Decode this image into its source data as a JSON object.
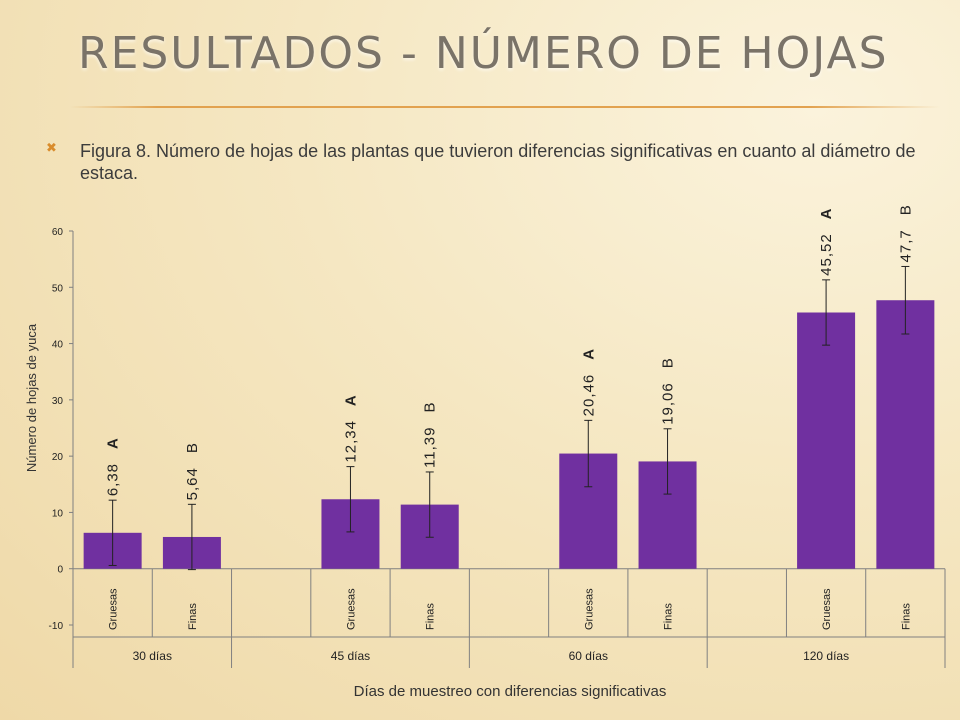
{
  "slide": {
    "title": "RESULTADOS  -  NÚMERO DE HOJAS",
    "bullet_icon": "x-bullet-icon",
    "caption": "Figura 8. Número de hojas de las plantas que tuvieron diferencias significativas en cuanto al diámetro de estaca."
  },
  "colors": {
    "bar": "#7030a0",
    "title": "#7a7368",
    "accent": "#e2a24f"
  },
  "chart_data": {
    "type": "bar",
    "title": "",
    "xlabel": "Días de muestreo con diferencias significativas",
    "ylabel": "Número de hojas de yuca",
    "ylim": [
      -10,
      60
    ],
    "yticks": [
      -10,
      0,
      10,
      20,
      30,
      40,
      50,
      60
    ],
    "grid": false,
    "groups": [
      {
        "label": "30 días",
        "bars": [
          {
            "category": "Gruesas",
            "value": 6.38,
            "value_label": "6,38",
            "letter": "A",
            "error": 5.8
          },
          {
            "category": "Finas",
            "value": 5.64,
            "value_label": "5,64",
            "letter": "B",
            "error": 5.8
          }
        ]
      },
      {
        "label": "45 días",
        "bars": [
          {
            "category": "Gruesas",
            "value": 12.34,
            "value_label": "12,34",
            "letter": "A",
            "error": 5.8
          },
          {
            "category": "Finas",
            "value": 11.39,
            "value_label": "11,39",
            "letter": "B",
            "error": 5.8
          }
        ]
      },
      {
        "label": "60 días",
        "bars": [
          {
            "category": "Gruesas",
            "value": 20.46,
            "value_label": "20,46",
            "letter": "A",
            "error": 5.9
          },
          {
            "category": "Finas",
            "value": 19.06,
            "value_label": "19,06",
            "letter": "B",
            "error": 5.8
          }
        ]
      },
      {
        "label": "120 días",
        "bars": [
          {
            "category": "Gruesas",
            "value": 45.52,
            "value_label": "45,52",
            "letter": "A",
            "error": 5.8
          },
          {
            "category": "Finas",
            "value": 47.7,
            "value_label": "47,7",
            "letter": "B",
            "error": 6.0
          }
        ]
      }
    ]
  }
}
